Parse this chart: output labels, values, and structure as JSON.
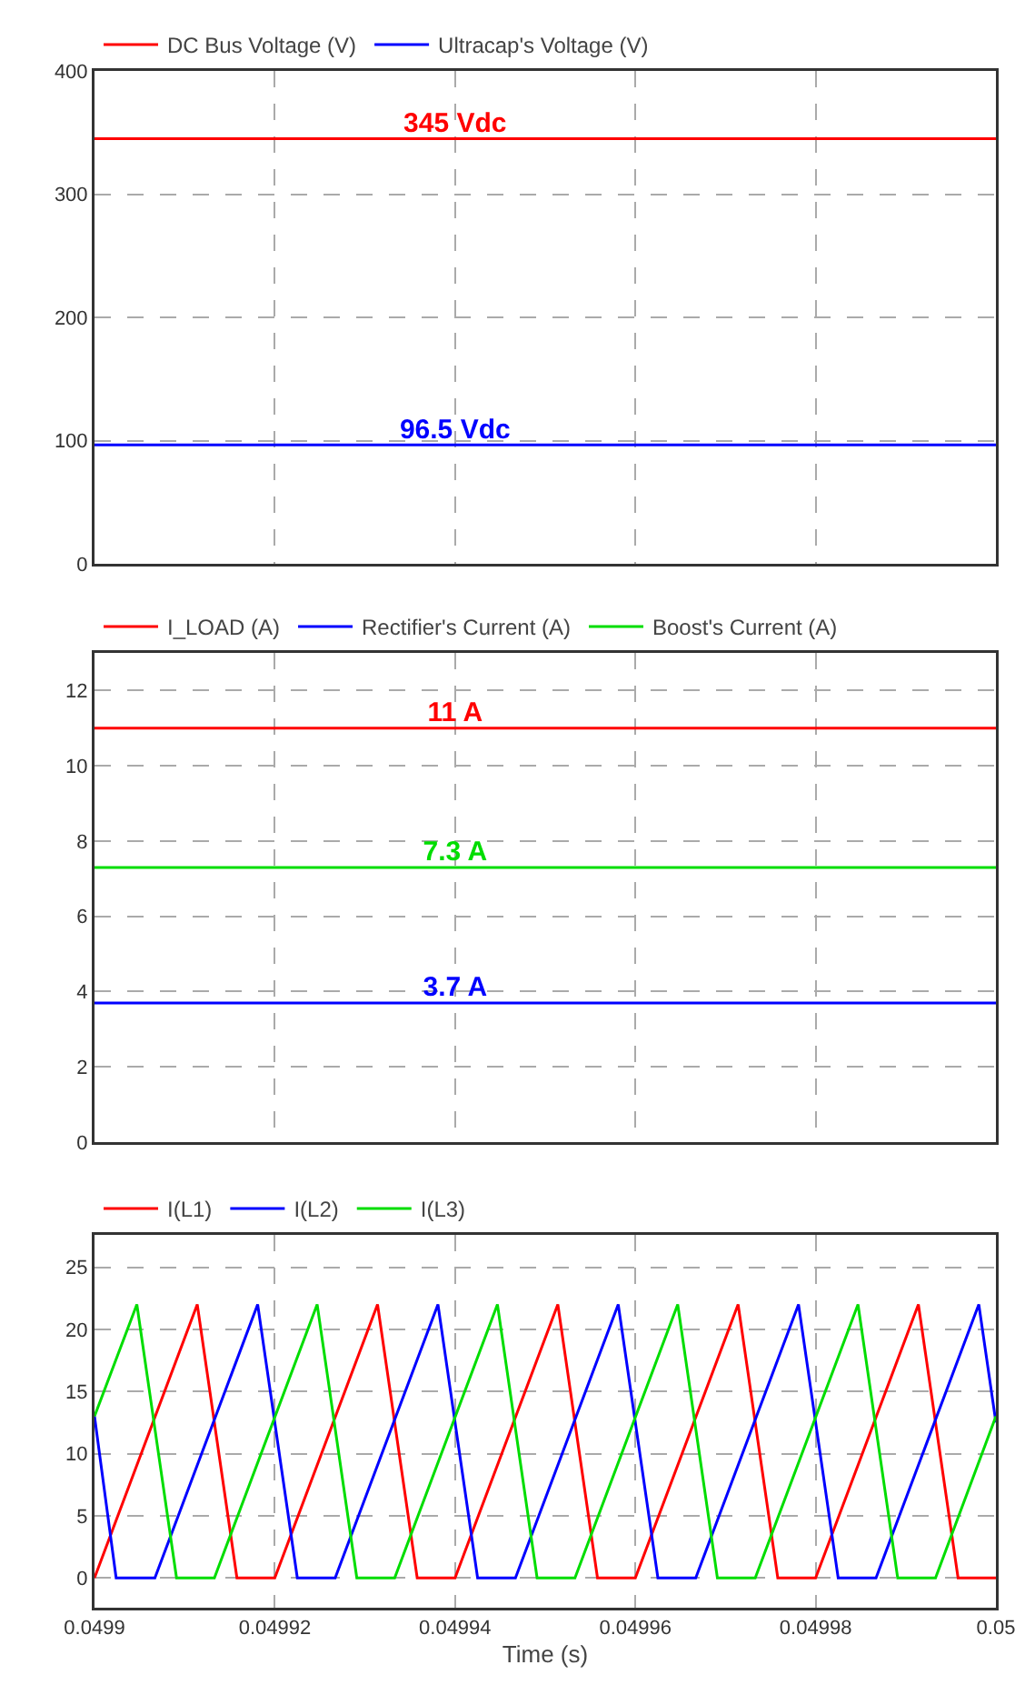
{
  "chart_data": [
    {
      "type": "line",
      "x": [
        0.0499,
        0.04994,
        0.05
      ],
      "xlim": [
        0.0499,
        0.05
      ],
      "xticks": [
        {
          "value": 0.0499,
          "label": null
        },
        {
          "value": 0.04992,
          "label": null
        },
        {
          "value": 0.04994,
          "label": null
        },
        {
          "value": 0.04996,
          "label": null
        },
        {
          "value": 0.04998,
          "label": null
        },
        {
          "value": 0.05,
          "label": null
        }
      ],
      "ylim": [
        0,
        400
      ],
      "yticks": [
        0,
        100,
        200,
        300,
        400
      ],
      "tick_labels": "y",
      "grid": true,
      "legend": "top left",
      "series": [
        {
          "name": "DC Bus Voltage (V)",
          "color": "#ff0000",
          "values": [
            345,
            345,
            345
          ],
          "value_labels": [
            null,
            "345 Vdc",
            null
          ]
        },
        {
          "name": "Ultracap's Voltage (V)",
          "color": "#0000ff",
          "values": [
            96.5,
            96.5,
            96.5
          ],
          "value_labels": [
            null,
            "96.5 Vdc",
            null
          ]
        }
      ]
    },
    {
      "type": "line",
      "x": [
        0.0499,
        0.04994,
        0.05
      ],
      "xlim": [
        0.0499,
        0.05
      ],
      "xticks": [
        {
          "value": 0.0499,
          "label": null
        },
        {
          "value": 0.04992,
          "label": null
        },
        {
          "value": 0.04994,
          "label": null
        },
        {
          "value": 0.04996,
          "label": null
        },
        {
          "value": 0.04998,
          "label": null
        },
        {
          "value": 0.05,
          "label": null
        }
      ],
      "ylim": [
        0,
        13
      ],
      "yticks": [
        0,
        2,
        4,
        6,
        8,
        10,
        12
      ],
      "tick_labels": "y",
      "grid": true,
      "legend": "top left",
      "series": [
        {
          "name": "I_LOAD (A)",
          "color": "#ff0000",
          "values": [
            11,
            11,
            11
          ],
          "value_labels": [
            null,
            "11 A",
            null
          ]
        },
        {
          "name": "Rectifier's Current (A)",
          "color": "#0000ff",
          "values": [
            3.7,
            3.7,
            3.7
          ],
          "value_labels": [
            null,
            "3.7 A",
            null
          ]
        },
        {
          "name": "Boost's Current (A)",
          "color": "#00dd00",
          "values": [
            7.3,
            7.3,
            7.3
          ],
          "value_labels": [
            null,
            "7.3 A",
            null
          ]
        }
      ]
    },
    {
      "type": "line",
      "xlabel": "Time (s)",
      "xlim": [
        0.0499,
        0.05
      ],
      "xticks": [
        0.0499,
        0.04992,
        0.04994,
        0.04996,
        0.04998,
        0.05
      ],
      "ylim": [
        -2.4,
        27.6
      ],
      "yticks": [
        0,
        5,
        10,
        15,
        20,
        25
      ],
      "grid": true,
      "legend": "top left",
      "series": [
        {
          "name": "I(L1)",
          "color": "#ff0000",
          "x": [
            0.0499,
            0.0499114,
            0.0499158,
            0.04992,
            0.0499314,
            0.0499358,
            0.04994,
            0.0499514,
            0.0499558,
            0.04996,
            0.0499714,
            0.0499758,
            0.04998,
            0.0499914,
            0.0499958,
            0.05
          ],
          "values": [
            0,
            22,
            0,
            0,
            22,
            0,
            0,
            22,
            0,
            0,
            22,
            0,
            0,
            22,
            0,
            0
          ]
        },
        {
          "name": "I(L2)",
          "color": "#0000ff",
          "x": [
            0.0499,
            0.0499024,
            0.0499067,
            0.0499181,
            0.0499225,
            0.0499267,
            0.0499381,
            0.0499425,
            0.0499467,
            0.0499581,
            0.0499625,
            0.0499667,
            0.0499781,
            0.0499825,
            0.0499867,
            0.0499981,
            0.05
          ],
          "values": [
            13,
            0,
            0,
            22,
            0,
            0,
            22,
            0,
            0,
            22,
            0,
            0,
            22,
            0,
            0,
            22,
            12.5
          ]
        },
        {
          "name": "I(L3)",
          "color": "#00dd00",
          "x": [
            0.0499,
            0.0499047,
            0.0499091,
            0.0499133,
            0.0499247,
            0.0499291,
            0.0499333,
            0.0499447,
            0.0499491,
            0.0499533,
            0.0499647,
            0.0499691,
            0.0499733,
            0.0499847,
            0.0499891,
            0.0499933,
            0.05
          ],
          "values": [
            13,
            22,
            0,
            0,
            22,
            0,
            0,
            22,
            0,
            0,
            22,
            0,
            0,
            22,
            0,
            0,
            13
          ]
        }
      ]
    }
  ]
}
